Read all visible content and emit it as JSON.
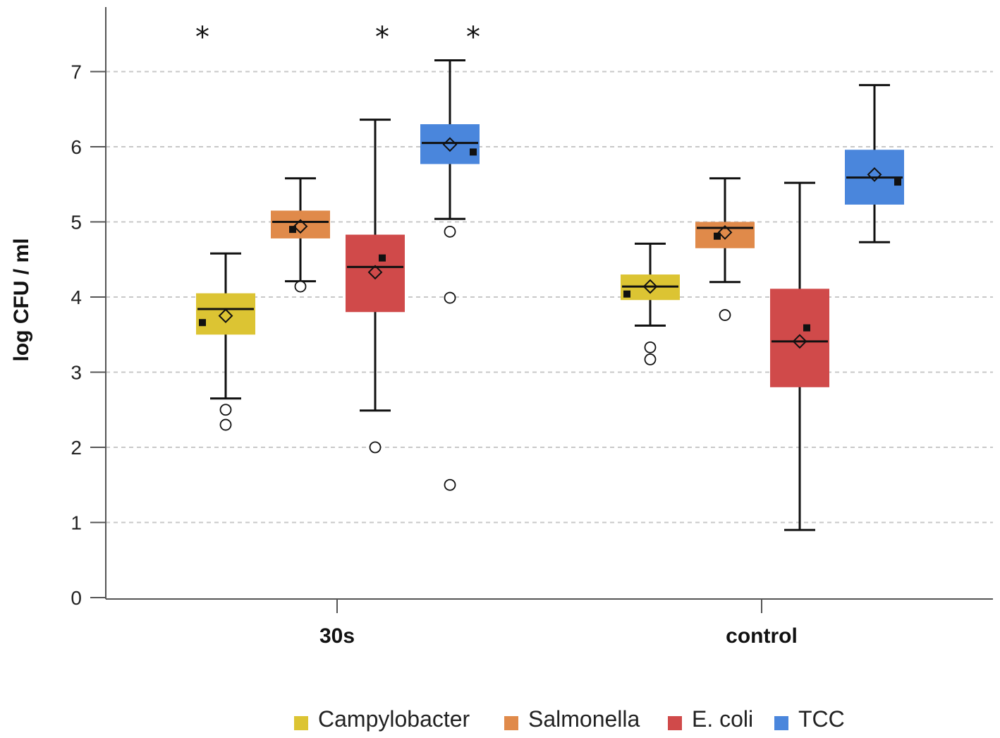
{
  "chart_data": {
    "type": "boxplot",
    "title": "",
    "xlabel": "",
    "ylabel": "log CFU / ml",
    "ylim": [
      0,
      7.8
    ],
    "yticks": [
      0,
      1,
      2,
      3,
      4,
      5,
      6,
      7
    ],
    "grid": true,
    "legend_position": "bottom",
    "categories": [
      "30s",
      "control"
    ],
    "series": [
      {
        "name": "Campylobacter",
        "color": "#dcc433"
      },
      {
        "name": "Salmonella",
        "color": "#e08a4a"
      },
      {
        "name": "E. coli",
        "color": "#d04a4a"
      },
      {
        "name": "TCC",
        "color": "#4a86dc"
      }
    ],
    "boxes": [
      {
        "category": "30s",
        "series": "Campylobacter",
        "whisker_low": 2.65,
        "q1": 3.5,
        "median": 3.84,
        "q3": 4.05,
        "whisker_high": 4.58,
        "mean": 3.75,
        "point": 3.66,
        "outliers": [
          2.5,
          2.3
        ],
        "significance": "*"
      },
      {
        "category": "30s",
        "series": "Salmonella",
        "whisker_low": 4.21,
        "q1": 4.78,
        "median": 5.0,
        "q3": 5.15,
        "whisker_high": 5.58,
        "mean": 4.94,
        "point": 4.9,
        "outliers": [
          4.14
        ],
        "significance": ""
      },
      {
        "category": "30s",
        "series": "E. coli",
        "whisker_low": 2.49,
        "q1": 3.8,
        "median": 4.4,
        "q3": 4.83,
        "whisker_high": 6.36,
        "mean": 4.33,
        "point": 4.52,
        "outliers": [
          2.0
        ],
        "significance": "*"
      },
      {
        "category": "30s",
        "series": "TCC",
        "whisker_low": 5.04,
        "q1": 5.77,
        "median": 6.05,
        "q3": 6.3,
        "whisker_high": 7.15,
        "mean": 6.03,
        "point": 5.93,
        "outliers": [
          4.87,
          3.99,
          1.5
        ],
        "significance": "*"
      },
      {
        "category": "control",
        "series": "Campylobacter",
        "whisker_low": 3.62,
        "q1": 3.96,
        "median": 4.14,
        "q3": 4.3,
        "whisker_high": 4.71,
        "mean": 4.14,
        "point": 4.04,
        "outliers": [
          3.33,
          3.17
        ],
        "significance": ""
      },
      {
        "category": "control",
        "series": "Salmonella",
        "whisker_low": 4.2,
        "q1": 4.65,
        "median": 4.92,
        "q3": 5.0,
        "whisker_high": 5.58,
        "mean": 4.86,
        "point": 4.81,
        "outliers": [
          3.76
        ],
        "significance": ""
      },
      {
        "category": "control",
        "series": "E. coli",
        "whisker_low": 0.9,
        "q1": 2.8,
        "median": 3.41,
        "q3": 4.11,
        "whisker_high": 5.52,
        "mean": 3.41,
        "point": 3.59,
        "outliers": [],
        "significance": ""
      },
      {
        "category": "control",
        "series": "TCC",
        "whisker_low": 4.73,
        "q1": 5.23,
        "median": 5.59,
        "q3": 5.96,
        "whisker_high": 6.82,
        "mean": 5.63,
        "point": 5.53,
        "outliers": [],
        "significance": ""
      }
    ]
  }
}
